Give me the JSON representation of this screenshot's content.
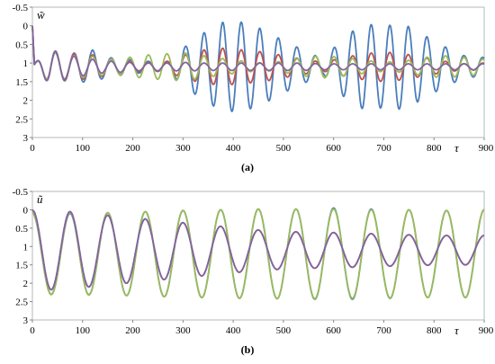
{
  "chart_data": [
    {
      "panel_label": "(a)",
      "type": "line",
      "ylabel": "w̃",
      "xlabel": "τ",
      "xlim": [
        0,
        900
      ],
      "ylim": [
        -0.5,
        3
      ],
      "y_inverted": true,
      "x_ticks": [
        "0",
        "100",
        "200",
        "300",
        "400",
        "500",
        "600",
        "700",
        "800",
        "900"
      ],
      "y_ticks": [
        "-0.5",
        "0",
        "0.5",
        "1",
        "1.5",
        "2",
        "2.5",
        "3"
      ],
      "colors": [
        "#4a7ebb",
        "#c0504d",
        "#9bbb59",
        "#8064a2"
      ],
      "period": 37,
      "phase_offset": 9,
      "series": [
        {
          "color": "#4a7ebb",
          "center": 1.1,
          "peaks": [
            [
              0,
              0.05
            ],
            [
              35,
              0.45
            ],
            [
              75,
              0.35
            ],
            [
              120,
              0.45
            ],
            [
              150,
              0.25
            ],
            [
              190,
              0.2
            ],
            [
              230,
              0.15
            ],
            [
              270,
              0.1
            ],
            [
              300,
              0.5
            ],
            [
              340,
              0.9
            ],
            [
              380,
              1.2
            ],
            [
              420,
              1.2
            ],
            [
              460,
              1.0
            ],
            [
              500,
              0.7
            ],
            [
              540,
              0.45
            ],
            [
              580,
              0.2
            ],
            [
              620,
              0.8
            ],
            [
              660,
              1.15
            ],
            [
              700,
              1.1
            ],
            [
              740,
              1.15
            ],
            [
              780,
              0.85
            ],
            [
              820,
              0.55
            ],
            [
              860,
              0.3
            ],
            [
              900,
              0.25
            ]
          ]
        },
        {
          "color": "#c0504d",
          "center": 1.1,
          "peaks": [
            [
              0,
              0.05
            ],
            [
              35,
              0.4
            ],
            [
              75,
              0.35
            ],
            [
              120,
              0.32
            ],
            [
              150,
              0.22
            ],
            [
              190,
              0.12
            ],
            [
              230,
              0.1
            ],
            [
              270,
              0.15
            ],
            [
              300,
              0.3
            ],
            [
              340,
              0.45
            ],
            [
              380,
              0.5
            ],
            [
              420,
              0.45
            ],
            [
              460,
              0.4
            ],
            [
              500,
              0.3
            ],
            [
              540,
              0.2
            ],
            [
              580,
              0.12
            ],
            [
              620,
              0.25
            ],
            [
              660,
              0.35
            ],
            [
              700,
              0.4
            ],
            [
              740,
              0.35
            ],
            [
              780,
              0.25
            ],
            [
              820,
              0.15
            ],
            [
              860,
              0.08
            ],
            [
              900,
              0.1
            ]
          ]
        },
        {
          "color": "#9bbb59",
          "center": 1.1,
          "peaks": [
            [
              0,
              0.05
            ],
            [
              35,
              0.4
            ],
            [
              75,
              0.3
            ],
            [
              120,
              0.28
            ],
            [
              150,
              0.2
            ],
            [
              190,
              0.25
            ],
            [
              230,
              0.32
            ],
            [
              270,
              0.35
            ],
            [
              300,
              0.38
            ],
            [
              340,
              0.3
            ],
            [
              380,
              0.22
            ],
            [
              420,
              0.15
            ],
            [
              460,
              0.1
            ],
            [
              500,
              0.15
            ],
            [
              540,
              0.25
            ],
            [
              580,
              0.3
            ],
            [
              620,
              0.25
            ],
            [
              660,
              0.18
            ],
            [
              700,
              0.12
            ],
            [
              740,
              0.15
            ],
            [
              780,
              0.25
            ],
            [
              820,
              0.3
            ],
            [
              860,
              0.25
            ],
            [
              900,
              0.2
            ]
          ]
        },
        {
          "color": "#8064a2",
          "center": 1.1,
          "peaks": [
            [
              0,
              0.05
            ],
            [
              35,
              0.45
            ],
            [
              75,
              0.3
            ],
            [
              120,
              0.2
            ],
            [
              150,
              0.15
            ],
            [
              190,
              0.15
            ],
            [
              230,
              0.12
            ],
            [
              270,
              0.1
            ],
            [
              300,
              0.12
            ],
            [
              340,
              0.1
            ],
            [
              380,
              0.1
            ],
            [
              420,
              0.1
            ],
            [
              460,
              0.1
            ],
            [
              500,
              0.1
            ],
            [
              540,
              0.1
            ],
            [
              580,
              0.08
            ],
            [
              620,
              0.08
            ],
            [
              660,
              0.08
            ],
            [
              700,
              0.08
            ],
            [
              740,
              0.08
            ],
            [
              780,
              0.08
            ],
            [
              820,
              0.08
            ],
            [
              860,
              0.08
            ],
            [
              900,
              0.08
            ]
          ]
        }
      ]
    },
    {
      "panel_label": "(b)",
      "type": "line",
      "ylabel": "ũ",
      "xlabel": "τ",
      "xlim": [
        0,
        900
      ],
      "ylim": [
        -0.5,
        3
      ],
      "y_inverted": true,
      "x_ticks": [
        "0",
        "100",
        "200",
        "300",
        "400",
        "500",
        "600",
        "700",
        "800",
        "900"
      ],
      "y_ticks": [
        "-0.5",
        "0",
        "0.5",
        "1",
        "1.5",
        "2",
        "2.5",
        "3"
      ],
      "colors": [
        "#4a7ebb",
        "#c0504d",
        "#9bbb59",
        "#8064a2"
      ],
      "period": 75,
      "phase_offset": 0,
      "series": [
        {
          "color": "#4a7ebb",
          "center": 1.2,
          "peaks": [
            [
              0,
              1.1
            ],
            [
              75,
              1.1
            ],
            [
              150,
              1.12
            ],
            [
              225,
              1.15
            ],
            [
              300,
              1.18
            ],
            [
              375,
              1.2
            ],
            [
              450,
              1.22
            ],
            [
              525,
              1.22
            ],
            [
              600,
              1.25
            ],
            [
              675,
              1.22
            ],
            [
              750,
              1.2
            ],
            [
              825,
              1.18
            ],
            [
              900,
              1.2
            ]
          ]
        },
        {
          "color": "#c0504d",
          "center": 1.1,
          "peaks": [
            [
              0,
              1.1
            ],
            [
              75,
              1.05
            ],
            [
              150,
              0.95
            ],
            [
              225,
              0.85
            ],
            [
              300,
              0.75
            ],
            [
              375,
              0.65
            ],
            [
              450,
              0.55
            ],
            [
              525,
              0.5
            ],
            [
              600,
              0.48
            ],
            [
              675,
              0.45
            ],
            [
              750,
              0.42
            ],
            [
              825,
              0.4
            ],
            [
              900,
              0.4
            ]
          ]
        },
        {
          "color": "#9bbb59",
          "center": 1.2,
          "peaks": [
            [
              0,
              1.1
            ],
            [
              75,
              1.12
            ],
            [
              150,
              1.12
            ],
            [
              225,
              1.15
            ],
            [
              300,
              1.18
            ],
            [
              375,
              1.2
            ],
            [
              450,
              1.22
            ],
            [
              525,
              1.22
            ],
            [
              600,
              1.22
            ],
            [
              675,
              1.2
            ],
            [
              750,
              1.2
            ],
            [
              825,
              1.18
            ],
            [
              900,
              1.2
            ]
          ]
        },
        {
          "color": "#8064a2",
          "center": 1.1,
          "peaks": [
            [
              0,
              1.1
            ],
            [
              75,
              1.05
            ],
            [
              150,
              0.95
            ],
            [
              225,
              0.85
            ],
            [
              300,
              0.75
            ],
            [
              375,
              0.65
            ],
            [
              450,
              0.55
            ],
            [
              525,
              0.5
            ],
            [
              600,
              0.48
            ],
            [
              675,
              0.45
            ],
            [
              750,
              0.42
            ],
            [
              825,
              0.4
            ],
            [
              900,
              0.4
            ]
          ]
        }
      ]
    }
  ]
}
